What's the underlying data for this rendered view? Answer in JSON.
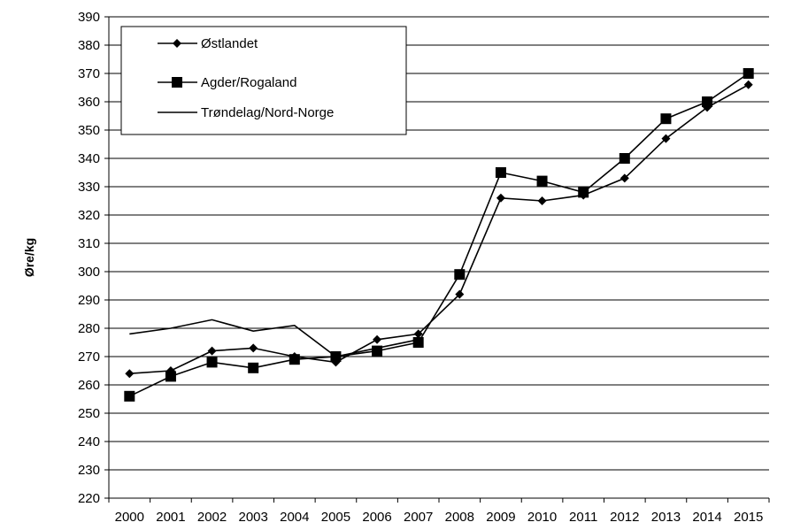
{
  "chart_data": {
    "type": "line",
    "title": "",
    "xlabel": "",
    "ylabel": "Øre/kg",
    "ylim": [
      220,
      390
    ],
    "y_step": 10,
    "grid": "horizontal",
    "legend_position": "top-left",
    "categories": [
      "2000",
      "2001",
      "2002",
      "2003",
      "2004",
      "2005",
      "2006",
      "2007",
      "2008",
      "2009",
      "2010",
      "2011",
      "2012",
      "2013",
      "2014",
      "2015"
    ],
    "series": [
      {
        "name": "Østlandet",
        "marker": "diamond",
        "values": [
          264,
          265,
          272,
          273,
          270,
          268,
          276,
          278,
          292,
          326,
          325,
          327,
          333,
          347,
          358,
          366
        ]
      },
      {
        "name": "Agder/Rogaland",
        "marker": "square",
        "values": [
          256,
          263,
          268,
          266,
          269,
          270,
          272,
          275,
          299,
          335,
          332,
          328,
          340,
          354,
          360,
          370
        ]
      },
      {
        "name": "Trøndelag/Nord-Norge",
        "marker": "none",
        "values": [
          278,
          280,
          283,
          279,
          281,
          270,
          null,
          276,
          null,
          null,
          null,
          null,
          null,
          null,
          null,
          null
        ]
      }
    ]
  }
}
